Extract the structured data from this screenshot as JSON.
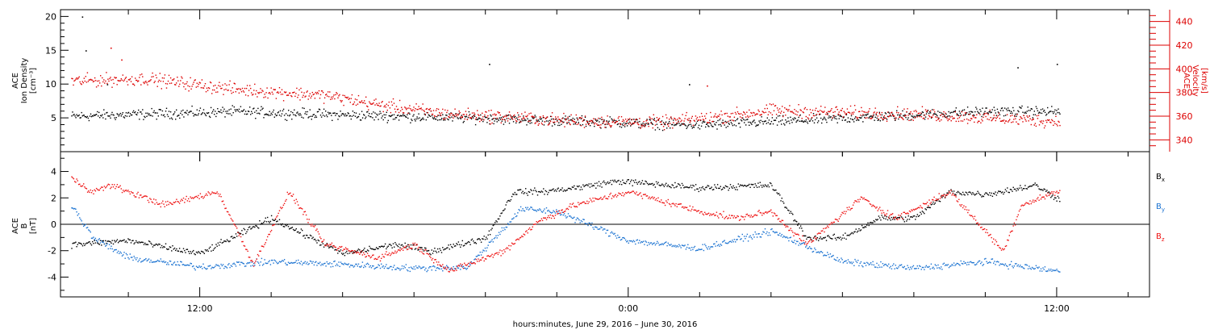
{
  "chart_data": [
    {
      "type": "scatter",
      "ylabel_left": [
        "ACE",
        "Ion Density",
        "[cm⁻³]"
      ],
      "ylabel_right": [
        "ACE",
        "Velocity",
        "[km/s]"
      ],
      "y_left_lim": [
        0,
        21
      ],
      "y_left_ticks": [
        5,
        10,
        15,
        20
      ],
      "y_right_lim": [
        330,
        450
      ],
      "y_right_ticks": [
        340,
        360,
        380,
        400,
        420,
        440
      ],
      "x_hours": [
        -3.6,
        26.6,
        3,
        0.25
      ],
      "density_profile": {
        "x_hours": [
          -3.6,
          1,
          4,
          8,
          11,
          14,
          18,
          22,
          24
        ],
        "values": [
          5.3,
          6.0,
          5.5,
          5.0,
          4.5,
          4.0,
          5.0,
          6.0,
          6.0
        ]
      },
      "density_spread": 0.7,
      "velocity_profile": {
        "x_hours": [
          -3.6,
          -1.5,
          1,
          3.5,
          5,
          7,
          8.5,
          10,
          13,
          16,
          20,
          24
        ],
        "values": [
          390,
          392,
          383,
          378,
          370,
          362,
          360,
          357,
          355,
          365,
          362,
          356
        ]
      },
      "velocity_spread": 4,
      "density_outliers": [
        [
          -3.3,
          20
        ],
        [
          -3.2,
          15
        ],
        [
          -2.6,
          10
        ],
        [
          8.1,
          13
        ],
        [
          13.7,
          10
        ],
        [
          24,
          13
        ],
        [
          22.9,
          12.5
        ]
      ],
      "velocity_outliers": [
        [
          -2.5,
          418
        ],
        [
          -2.2,
          408
        ],
        [
          14.2,
          386
        ]
      ]
    },
    {
      "type": "scatter",
      "ylabel": [
        "ACE",
        "B",
        "[nT]"
      ],
      "ylim": [
        -5.5,
        5.5
      ],
      "yticks": [
        -4,
        -2,
        0,
        2,
        4
      ],
      "legend": [
        "Bx",
        "By",
        "Bz"
      ],
      "legend_placement": "right",
      "zero_line": true,
      "series": [
        {
          "name": "Bx",
          "color": "#000000",
          "x_hours": [
            -3.6,
            -2,
            0,
            2,
            4,
            5.5,
            6.5,
            8,
            8.8,
            9.6,
            10.5,
            11.7,
            14,
            16,
            17,
            18,
            19,
            20,
            21,
            22,
            23.4,
            24
          ],
          "values": [
            -1.5,
            -1.2,
            -2.2,
            0.5,
            -2.2,
            -1.5,
            -2.0,
            -1.0,
            2.5,
            2.5,
            2.8,
            3.3,
            2.8,
            3.0,
            -1.0,
            -1.0,
            0.5,
            0.5,
            2.5,
            2.3,
            3.0,
            2.0
          ]
        },
        {
          "name": "By",
          "color": "#1a72d1",
          "x_hours": [
            -3.6,
            -3,
            -2,
            0,
            2,
            4,
            6,
            7.5,
            9,
            10,
            12,
            14,
            16,
            18,
            20,
            22,
            24
          ],
          "values": [
            1.5,
            -1.0,
            -2.5,
            -3.2,
            -2.8,
            -3.0,
            -3.3,
            -3.2,
            1.2,
            1.0,
            -1.2,
            -1.8,
            -0.5,
            -2.8,
            -3.3,
            -2.8,
            -3.5
          ]
        },
        {
          "name": "Bz",
          "color": "#ee1111",
          "x_hours": [
            -3.6,
            -3,
            -2.5,
            -1,
            0.5,
            1.5,
            2.5,
            3.5,
            5,
            6,
            7,
            8.5,
            9.5,
            10.5,
            12,
            14,
            15,
            16,
            17,
            18.5,
            19.5,
            21,
            22.5,
            23,
            24
          ],
          "values": [
            3.5,
            2.5,
            3.0,
            1.5,
            2.5,
            -3.0,
            2.5,
            -1.5,
            -2.5,
            -1.5,
            -3.5,
            -2.0,
            0.3,
            1.5,
            2.5,
            1.0,
            0.5,
            1.0,
            -1.5,
            2.0,
            0.5,
            2.5,
            -2.0,
            1.5,
            2.5
          ]
        }
      ],
      "xlabel": "hours:minutes, June 29, 2016 – June 30, 2016",
      "xlim_hours": [
        -3.9,
        26.6
      ],
      "xtick_labels": [
        {
          "hour": 0,
          "label": "12:00"
        },
        {
          "hour": 12,
          "label": "0:00"
        },
        {
          "hour": 24,
          "label": "12:00"
        }
      ],
      "minor_tick_step_hours": 2
    }
  ],
  "colors": {
    "density": "#000000",
    "velocity": "#dd0000",
    "axes": "#000000"
  }
}
